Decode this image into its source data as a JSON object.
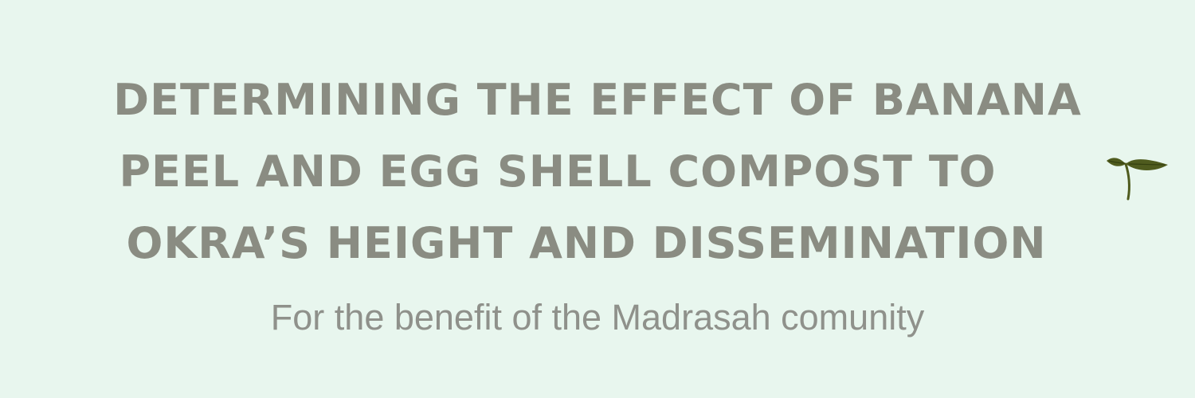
{
  "title": {
    "line1": "Determining the effect of banana",
    "line2": "peel and egg shell compost to",
    "line3": "okra’s height and dissemination"
  },
  "subtitle": "For the benefit of the Madrasah comunity",
  "colors": {
    "background": "#e8f6ee",
    "title": "#8a8c82",
    "subtitle": "#8f918b",
    "leaf": "#4f5b1e"
  },
  "decoration": {
    "icon": "sprout-icon"
  }
}
